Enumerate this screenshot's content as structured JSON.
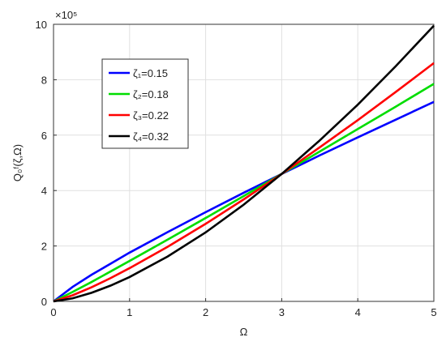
{
  "chart_data": {
    "type": "line",
    "xlabel": "Ω",
    "ylabel": "Q₀ᶠ(ζ,Ω)",
    "y_multiplier": "×10⁵",
    "x": [
      0,
      0.25,
      0.5,
      0.75,
      1,
      1.5,
      2,
      2.5,
      3,
      3.5,
      4,
      4.5,
      5
    ],
    "series": [
      {
        "name": "ζ₁=0.15",
        "color": "#0000ff",
        "values": [
          0,
          0.52,
          0.96,
          1.36,
          1.76,
          2.5,
          3.22,
          3.92,
          4.6,
          5.27,
          5.92,
          6.56,
          7.2
        ]
      },
      {
        "name": "ζ₂=0.18",
        "color": "#00dd00",
        "values": [
          0,
          0.34,
          0.7,
          1.08,
          1.46,
          2.23,
          3.01,
          3.8,
          4.6,
          5.41,
          6.22,
          7.03,
          7.85
        ]
      },
      {
        "name": "ζ₃=0.22",
        "color": "#ff0000",
        "values": [
          0,
          0.22,
          0.51,
          0.84,
          1.2,
          1.97,
          2.8,
          3.68,
          4.6,
          5.56,
          6.54,
          7.56,
          8.6
        ]
      },
      {
        "name": "ζ₄=0.32",
        "color": "#000000",
        "values": [
          0,
          0.11,
          0.31,
          0.57,
          0.88,
          1.62,
          2.49,
          3.49,
          4.6,
          5.81,
          7.1,
          8.49,
          9.95
        ]
      }
    ],
    "xlim": [
      0,
      5
    ],
    "xticks": [
      0,
      1,
      2,
      3,
      4,
      5
    ],
    "ylim": [
      0,
      10
    ],
    "yticks": [
      0,
      2,
      4,
      6,
      8,
      10
    ],
    "grid": true,
    "legend": "upper left"
  }
}
